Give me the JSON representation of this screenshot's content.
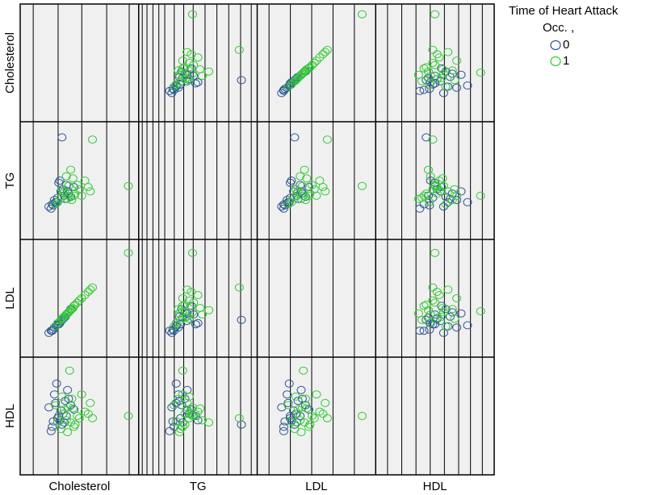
{
  "chart_data": {
    "type": "scatter-matrix",
    "variables": [
      "Cholesterol",
      "TG",
      "LDL",
      "HDL"
    ],
    "legend": {
      "title_line1": "Time of Heart Attack",
      "title_line2": "Occ. ,",
      "items": [
        {
          "label": "0",
          "color": "#2f5597"
        },
        {
          "label": "1",
          "color": "#33cc33"
        }
      ]
    },
    "grid": true,
    "background": "#f0f0f0",
    "ranges": {
      "Cholesterol": [
        0,
        1
      ],
      "TG": [
        0,
        1
      ],
      "LDL": [
        0,
        1
      ],
      "HDL": [
        0,
        1
      ]
    },
    "series": [
      {
        "name": "0",
        "points": [
          {
            "Cholesterol": 0.25,
            "TG": 0.28,
            "LDL": 0.2,
            "HDL": 0.4
          },
          {
            "Cholesterol": 0.3,
            "TG": 0.34,
            "LDL": 0.26,
            "HDL": 0.48
          },
          {
            "Cholesterol": 0.33,
            "TG": 0.4,
            "LDL": 0.29,
            "HDL": 0.55
          },
          {
            "Cholesterol": 0.28,
            "TG": 0.3,
            "LDL": 0.24,
            "HDL": 0.62
          },
          {
            "Cholesterol": 0.36,
            "TG": 0.36,
            "LDL": 0.32,
            "HDL": 0.44
          },
          {
            "Cholesterol": 0.38,
            "TG": 0.46,
            "LDL": 0.35,
            "HDL": 0.5
          },
          {
            "Cholesterol": 0.22,
            "TG": 0.26,
            "LDL": 0.18,
            "HDL": 0.58
          },
          {
            "Cholesterol": 0.4,
            "TG": 0.38,
            "LDL": 0.37,
            "HDL": 0.66
          },
          {
            "Cholesterol": 0.32,
            "TG": 0.5,
            "LDL": 0.27,
            "HDL": 0.46
          },
          {
            "Cholesterol": 0.27,
            "TG": 0.32,
            "LDL": 0.23,
            "HDL": 0.7
          },
          {
            "Cholesterol": 0.35,
            "TG": 0.42,
            "LDL": 0.31,
            "HDL": 0.52
          },
          {
            "Cholesterol": 0.42,
            "TG": 0.35,
            "LDL": 0.4,
            "HDL": 0.6
          },
          {
            "Cholesterol": 0.29,
            "TG": 0.3,
            "LDL": 0.25,
            "HDL": 0.8
          },
          {
            "Cholesterol": 0.34,
            "TG": 0.9,
            "LDL": 0.3,
            "HDL": 0.42
          },
          {
            "Cholesterol": 0.45,
            "TG": 0.44,
            "LDL": 0.43,
            "HDL": 0.56
          },
          {
            "Cholesterol": 0.24,
            "TG": 0.24,
            "LDL": 0.2,
            "HDL": 0.36
          },
          {
            "Cholesterol": 0.37,
            "TG": 0.33,
            "LDL": 0.33,
            "HDL": 0.64
          },
          {
            "Cholesterol": 0.31,
            "TG": 0.48,
            "LDL": 0.26,
            "HDL": 0.5
          },
          {
            "Cholesterol": 0.26,
            "TG": 0.27,
            "LDL": 0.21,
            "HDL": 0.45
          },
          {
            "Cholesterol": 0.39,
            "TG": 0.4,
            "LDL": 0.36,
            "HDL": 0.74
          }
        ]
      },
      {
        "name": "1",
        "points": [
          {
            "Cholesterol": 0.3,
            "TG": 0.3,
            "LDL": 0.27,
            "HDL": 0.45
          },
          {
            "Cholesterol": 0.35,
            "TG": 0.38,
            "LDL": 0.32,
            "HDL": 0.52
          },
          {
            "Cholesterol": 0.4,
            "TG": 0.45,
            "LDL": 0.37,
            "HDL": 0.58
          },
          {
            "Cholesterol": 0.45,
            "TG": 0.36,
            "LDL": 0.43,
            "HDL": 0.4
          },
          {
            "Cholesterol": 0.5,
            "TG": 0.42,
            "LDL": 0.48,
            "HDL": 0.48
          },
          {
            "Cholesterol": 0.55,
            "TG": 0.5,
            "LDL": 0.53,
            "HDL": 0.54
          },
          {
            "Cholesterol": 0.6,
            "TG": 0.4,
            "LDL": 0.58,
            "HDL": 0.62
          },
          {
            "Cholesterol": 0.33,
            "TG": 0.34,
            "LDL": 0.3,
            "HDL": 0.38
          },
          {
            "Cholesterol": 0.38,
            "TG": 0.54,
            "LDL": 0.35,
            "HDL": 0.46
          },
          {
            "Cholesterol": 0.43,
            "TG": 0.32,
            "LDL": 0.4,
            "HDL": 0.66
          },
          {
            "Cholesterol": 0.48,
            "TG": 0.46,
            "LDL": 0.46,
            "HDL": 0.5
          },
          {
            "Cholesterol": 0.36,
            "TG": 0.4,
            "LDL": 0.33,
            "HDL": 0.56
          },
          {
            "Cholesterol": 0.28,
            "TG": 0.28,
            "LDL": 0.24,
            "HDL": 0.6
          },
          {
            "Cholesterol": 0.42,
            "TG": 0.6,
            "LDL": 0.39,
            "HDL": 0.44
          },
          {
            "Cholesterol": 0.52,
            "TG": 0.36,
            "LDL": 0.5,
            "HDL": 0.7
          },
          {
            "Cholesterol": 0.46,
            "TG": 0.38,
            "LDL": 0.44,
            "HDL": 0.42
          },
          {
            "Cholesterol": 0.34,
            "TG": 0.42,
            "LDL": 0.31,
            "HDL": 0.68
          },
          {
            "Cholesterol": 0.58,
            "TG": 0.44,
            "LDL": 0.56,
            "HDL": 0.52
          },
          {
            "Cholesterol": 0.39,
            "TG": 0.33,
            "LDL": 0.36,
            "HDL": 0.35
          },
          {
            "Cholesterol": 0.44,
            "TG": 0.52,
            "LDL": 0.41,
            "HDL": 0.57
          },
          {
            "Cholesterol": 0.95,
            "TG": 0.45,
            "LDL": 0.92,
            "HDL": 0.5
          },
          {
            "Cholesterol": 0.62,
            "TG": 0.88,
            "LDL": 0.6,
            "HDL": 0.48
          },
          {
            "Cholesterol": 0.41,
            "TG": 0.36,
            "LDL": 0.38,
            "HDL": 0.92
          }
        ]
      }
    ]
  }
}
